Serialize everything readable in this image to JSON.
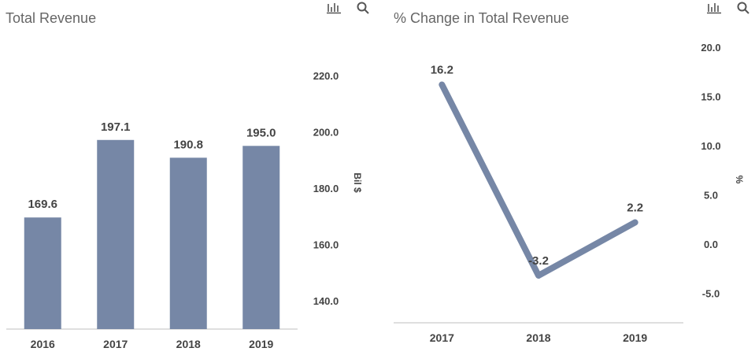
{
  "colors": {
    "bar": "#7687a6",
    "line": "#7687a6",
    "axis": "#bfbfbf",
    "text": "#444444",
    "title": "#666666"
  },
  "toolbar": {
    "icons": [
      "bar-chart-icon",
      "search-icon"
    ]
  },
  "chart_data": [
    {
      "type": "bar",
      "title": "Total Revenue",
      "categories": [
        "2016",
        "2017",
        "2018",
        "2019"
      ],
      "values": [
        169.6,
        197.1,
        190.8,
        195.0
      ],
      "data_labels": [
        "169.6",
        "197.1",
        "190.8",
        "195.0"
      ],
      "ylabel": "Bil $",
      "yticks": [
        "140.0",
        "160.0",
        "180.0",
        "200.0",
        "220.0"
      ],
      "ytick_values": [
        140,
        160,
        180,
        200,
        220
      ],
      "ylim": [
        130,
        230
      ],
      "y_axis_side": "right",
      "grid": false,
      "legend": "none"
    },
    {
      "type": "line",
      "title": "% Change in Total Revenue",
      "categories": [
        "2017",
        "2018",
        "2019"
      ],
      "values": [
        16.2,
        -3.2,
        2.2
      ],
      "data_labels": [
        "16.2",
        "-3.2",
        "2.2"
      ],
      "ylabel": "%",
      "yticks": [
        "-5.0",
        "0.0",
        "5.0",
        "10.0",
        "15.0",
        "20.0"
      ],
      "ytick_values": [
        -5,
        0,
        5,
        10,
        15,
        20
      ],
      "ylim": [
        -8,
        20
      ],
      "y_axis_side": "right",
      "grid": false,
      "legend": "none"
    }
  ]
}
